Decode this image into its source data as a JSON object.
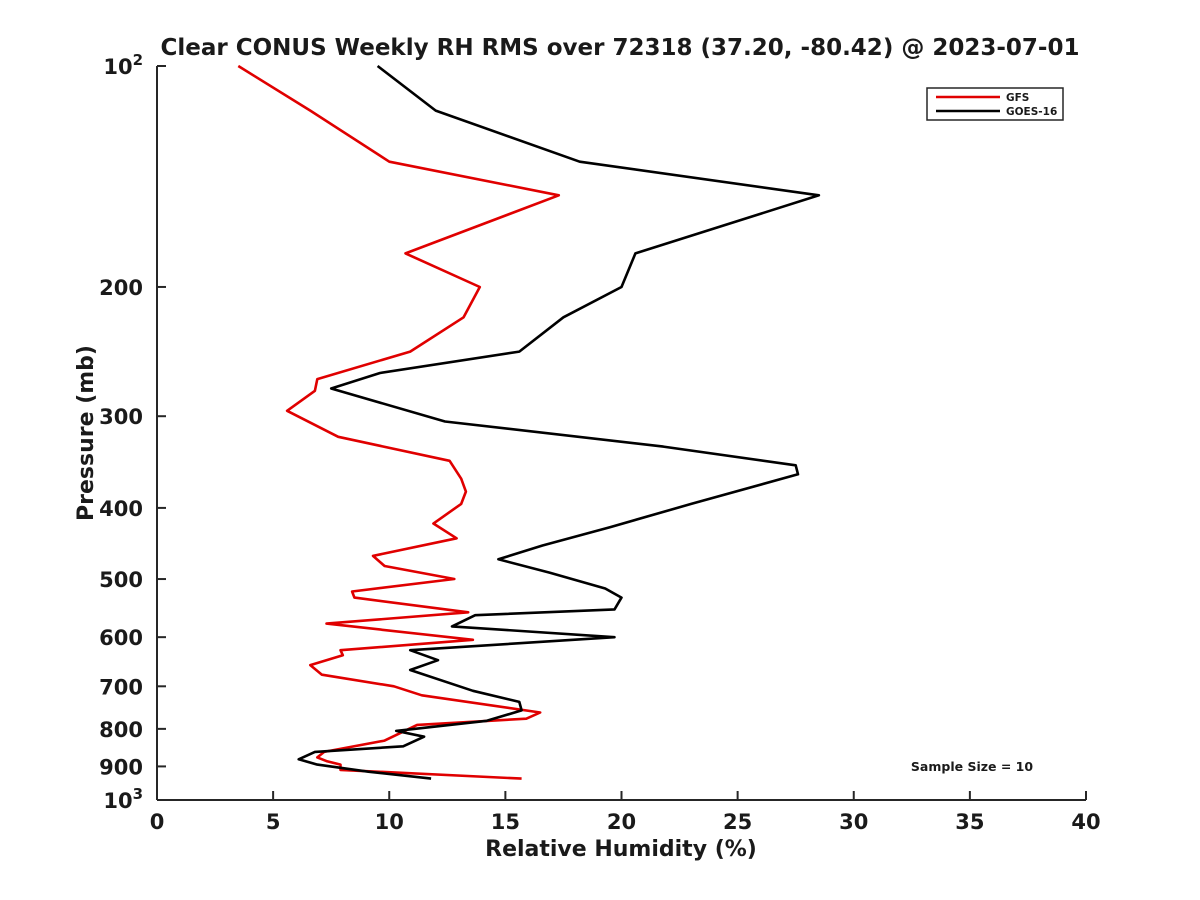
{
  "chart_data": {
    "type": "line",
    "title": "Clear CONUS Weekly RH RMS over 72318 (37.20, -80.42) @ 2023-07-01",
    "xlabel": "Relative Humidity (%)",
    "ylabel": "Pressure (mb)",
    "xlim": [
      0,
      40
    ],
    "ylim": [
      100,
      1000
    ],
    "yscale": "log",
    "y_reversed": true,
    "x_ticks": [
      "0",
      "5",
      "10",
      "15",
      "20",
      "25",
      "30",
      "35",
      "40"
    ],
    "y_ticks": [
      {
        "value": 100,
        "base": "10",
        "exp": "2"
      },
      {
        "value": 200,
        "label": "200"
      },
      {
        "value": 300,
        "label": "300"
      },
      {
        "value": 400,
        "label": "400"
      },
      {
        "value": 500,
        "label": "500"
      },
      {
        "value": 600,
        "label": "600"
      },
      {
        "value": 700,
        "label": "700"
      },
      {
        "value": 800,
        "label": "800"
      },
      {
        "value": 900,
        "label": "900"
      },
      {
        "value": 1000,
        "base": "10",
        "exp": "3"
      }
    ],
    "grid": false,
    "legend_position": "top-right",
    "series": [
      {
        "name": "GFS",
        "color": "#e00000",
        "points": [
          [
            3.5,
            100
          ],
          [
            6.6,
            115
          ],
          [
            10.0,
            135
          ],
          [
            17.3,
            150
          ],
          [
            10.7,
            180
          ],
          [
            13.9,
            200
          ],
          [
            13.2,
            220
          ],
          [
            10.9,
            245
          ],
          [
            6.9,
            267
          ],
          [
            6.8,
            277
          ],
          [
            5.6,
            295
          ],
          [
            7.8,
            320
          ],
          [
            12.6,
            345
          ],
          [
            13.1,
            365
          ],
          [
            13.3,
            380
          ],
          [
            13.1,
            395
          ],
          [
            11.9,
            420
          ],
          [
            12.9,
            440
          ],
          [
            9.3,
            465
          ],
          [
            9.8,
            480
          ],
          [
            12.8,
            500
          ],
          [
            8.4,
            520
          ],
          [
            8.5,
            530
          ],
          [
            13.4,
            555
          ],
          [
            7.3,
            575
          ],
          [
            13.6,
            605
          ],
          [
            7.9,
            625
          ],
          [
            8.0,
            635
          ],
          [
            6.6,
            655
          ],
          [
            7.1,
            675
          ],
          [
            10.2,
            700
          ],
          [
            11.4,
            720
          ],
          [
            16.5,
            760
          ],
          [
            15.9,
            775
          ],
          [
            11.2,
            790
          ],
          [
            9.8,
            830
          ],
          [
            7.2,
            860
          ],
          [
            6.9,
            875
          ],
          [
            7.3,
            885
          ],
          [
            7.9,
            895
          ],
          [
            7.9,
            910
          ],
          [
            15.7,
            935
          ]
        ]
      },
      {
        "name": "GOES-16",
        "color": "#000000",
        "points": [
          [
            9.5,
            100
          ],
          [
            12.0,
            115
          ],
          [
            18.2,
            135
          ],
          [
            28.5,
            150
          ],
          [
            20.6,
            180
          ],
          [
            20.0,
            200
          ],
          [
            17.5,
            220
          ],
          [
            15.6,
            245
          ],
          [
            9.6,
            262
          ],
          [
            7.5,
            275
          ],
          [
            12.4,
            305
          ],
          [
            21.8,
            330
          ],
          [
            27.5,
            350
          ],
          [
            27.6,
            360
          ],
          [
            23.0,
            395
          ],
          [
            19.5,
            425
          ],
          [
            16.6,
            450
          ],
          [
            14.7,
            470
          ],
          [
            16.9,
            490
          ],
          [
            19.3,
            515
          ],
          [
            20.0,
            530
          ],
          [
            19.7,
            550
          ],
          [
            13.7,
            560
          ],
          [
            12.7,
            580
          ],
          [
            19.7,
            600
          ],
          [
            10.9,
            625
          ],
          [
            12.1,
            645
          ],
          [
            10.9,
            665
          ],
          [
            13.6,
            710
          ],
          [
            15.6,
            735
          ],
          [
            15.7,
            755
          ],
          [
            14.2,
            780
          ],
          [
            10.3,
            805
          ],
          [
            11.5,
            820
          ],
          [
            10.6,
            845
          ],
          [
            6.8,
            860
          ],
          [
            6.1,
            880
          ],
          [
            6.9,
            895
          ],
          [
            9.1,
            915
          ],
          [
            11.8,
            935
          ]
        ]
      }
    ],
    "annotations": [
      "Sample Size = 10"
    ]
  }
}
